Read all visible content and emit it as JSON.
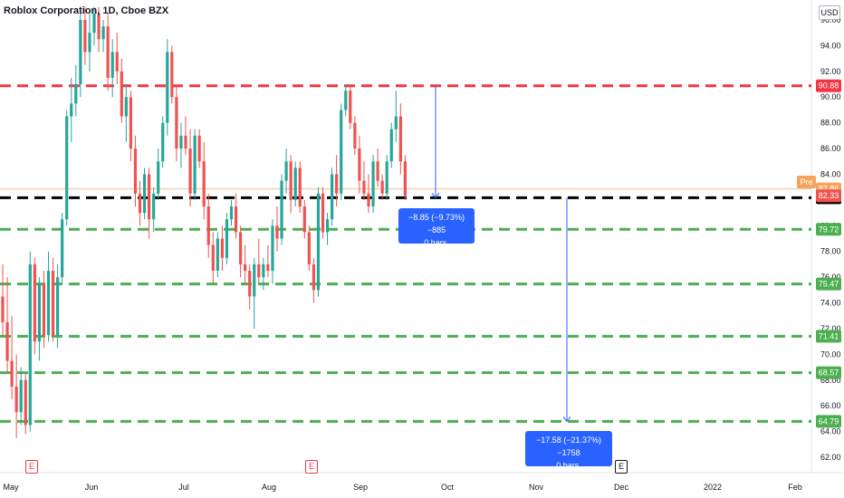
{
  "title": "Roblox Corporation, 1D, Cboe BZX",
  "currency": "USD",
  "pre_label": "Pre",
  "colors": {
    "up": "#26a69a",
    "down": "#ef5350",
    "resistance": "#f23645",
    "support": "#4caf50",
    "current": "#000000",
    "measure": "#2962ff",
    "pre": "#f7a35c"
  },
  "measure_boxes": [
    {
      "line1": "−8.85 (−9.73%) −885",
      "line2": "0 bars,"
    },
    {
      "line1": "−17.58 (−21.37%) −1758",
      "line2": "0 bars,"
    }
  ],
  "markers": [
    "E",
    "E",
    "E"
  ],
  "chart_data": {
    "type": "candlestick",
    "title": "Roblox Corporation, 1D, Cboe BZX",
    "y_range": [
      61,
      97
    ],
    "y_ticks": [
      62,
      64,
      66,
      68,
      70,
      72,
      74,
      76,
      78,
      80,
      82,
      84,
      86,
      88,
      90,
      92,
      94,
      96
    ],
    "x_ticks": [
      "May",
      "Jun",
      "Jul",
      "Aug",
      "Sep",
      "Oct",
      "Nov",
      "Dec",
      "2022",
      "Feb"
    ],
    "price_levels": [
      {
        "value": 90.88,
        "label": "90.88",
        "kind": "resistance"
      },
      {
        "value": 82.18,
        "label": "82.18",
        "kind": "current"
      },
      {
        "value": 79.72,
        "label": "79.72",
        "kind": "support"
      },
      {
        "value": 75.47,
        "label": "75.47",
        "kind": "support"
      },
      {
        "value": 71.41,
        "label": "71.41",
        "kind": "support"
      },
      {
        "value": 68.57,
        "label": "68.57",
        "kind": "support"
      },
      {
        "value": 64.79,
        "label": "64.79",
        "kind": "support"
      }
    ],
    "price_tags": [
      {
        "value": 82.86,
        "label": "82.86",
        "kind": "pre"
      },
      {
        "value": 82.33,
        "label": "82.33",
        "kind": "last"
      }
    ],
    "candles": [
      {
        "o": 74.5,
        "h": 77.0,
        "l": 71.5,
        "c": 72.5
      },
      {
        "o": 72.5,
        "h": 76.0,
        "l": 68.5,
        "c": 69.5
      },
      {
        "o": 69.5,
        "h": 73.0,
        "l": 66.5,
        "c": 67.5
      },
      {
        "o": 67.5,
        "h": 70.0,
        "l": 63.5,
        "c": 65.5
      },
      {
        "o": 65.5,
        "h": 69.0,
        "l": 64.5,
        "c": 68.0
      },
      {
        "o": 68.0,
        "h": 68.5,
        "l": 63.8,
        "c": 64.5
      },
      {
        "o": 64.5,
        "h": 78.0,
        "l": 64.0,
        "c": 77.0
      },
      {
        "o": 77.0,
        "h": 77.5,
        "l": 70.0,
        "c": 71.0
      },
      {
        "o": 71.0,
        "h": 76.0,
        "l": 69.5,
        "c": 75.5
      },
      {
        "o": 75.5,
        "h": 76.5,
        "l": 70.5,
        "c": 71.5
      },
      {
        "o": 71.5,
        "h": 78.0,
        "l": 71.0,
        "c": 76.5
      },
      {
        "o": 76.5,
        "h": 77.5,
        "l": 71.0,
        "c": 71.5
      },
      {
        "o": 71.5,
        "h": 77.0,
        "l": 70.5,
        "c": 76.0
      },
      {
        "o": 76.0,
        "h": 81.0,
        "l": 75.5,
        "c": 80.5
      },
      {
        "o": 80.5,
        "h": 89.0,
        "l": 80.0,
        "c": 88.5
      },
      {
        "o": 88.5,
        "h": 91.5,
        "l": 86.5,
        "c": 89.5
      },
      {
        "o": 89.5,
        "h": 92.5,
        "l": 88.5,
        "c": 91.0
      },
      {
        "o": 91.0,
        "h": 97.0,
        "l": 90.0,
        "c": 96.0
      },
      {
        "o": 96.0,
        "h": 97.0,
        "l": 92.5,
        "c": 93.5
      },
      {
        "o": 93.5,
        "h": 96.5,
        "l": 92.0,
        "c": 95.0
      },
      {
        "o": 95.0,
        "h": 97.0,
        "l": 94.0,
        "c": 96.5
      },
      {
        "o": 96.5,
        "h": 97.0,
        "l": 93.5,
        "c": 94.5
      },
      {
        "o": 94.5,
        "h": 96.0,
        "l": 93.5,
        "c": 95.5
      },
      {
        "o": 95.5,
        "h": 96.5,
        "l": 90.5,
        "c": 91.5
      },
      {
        "o": 91.5,
        "h": 94.5,
        "l": 90.0,
        "c": 93.5
      },
      {
        "o": 93.5,
        "h": 95.0,
        "l": 91.0,
        "c": 92.0
      },
      {
        "o": 92.0,
        "h": 93.0,
        "l": 88.0,
        "c": 88.5
      },
      {
        "o": 88.5,
        "h": 91.0,
        "l": 86.5,
        "c": 90.0
      },
      {
        "o": 90.0,
        "h": 90.5,
        "l": 85.0,
        "c": 86.0
      },
      {
        "o": 86.0,
        "h": 87.0,
        "l": 81.5,
        "c": 82.5
      },
      {
        "o": 82.5,
        "h": 83.5,
        "l": 80.0,
        "c": 81.0
      },
      {
        "o": 81.0,
        "h": 84.5,
        "l": 80.5,
        "c": 84.0
      },
      {
        "o": 84.0,
        "h": 84.5,
        "l": 79.0,
        "c": 80.5
      },
      {
        "o": 80.5,
        "h": 83.0,
        "l": 79.5,
        "c": 82.5
      },
      {
        "o": 82.5,
        "h": 86.0,
        "l": 82.0,
        "c": 85.0
      },
      {
        "o": 85.0,
        "h": 88.5,
        "l": 84.5,
        "c": 88.0
      },
      {
        "o": 88.0,
        "h": 94.5,
        "l": 87.0,
        "c": 93.5
      },
      {
        "o": 93.5,
        "h": 94.0,
        "l": 89.5,
        "c": 90.0
      },
      {
        "o": 90.0,
        "h": 91.0,
        "l": 85.0,
        "c": 86.0
      },
      {
        "o": 86.0,
        "h": 88.0,
        "l": 84.5,
        "c": 87.0
      },
      {
        "o": 87.0,
        "h": 88.5,
        "l": 85.5,
        "c": 86.0
      },
      {
        "o": 86.0,
        "h": 87.5,
        "l": 81.5,
        "c": 82.5
      },
      {
        "o": 82.5,
        "h": 87.5,
        "l": 82.0,
        "c": 87.0
      },
      {
        "o": 87.0,
        "h": 87.5,
        "l": 84.5,
        "c": 85.0
      },
      {
        "o": 85.0,
        "h": 86.5,
        "l": 80.5,
        "c": 81.5
      },
      {
        "o": 81.5,
        "h": 82.5,
        "l": 77.5,
        "c": 78.5
      },
      {
        "o": 78.5,
        "h": 79.5,
        "l": 75.5,
        "c": 76.5
      },
      {
        "o": 76.5,
        "h": 79.5,
        "l": 76.0,
        "c": 79.0
      },
      {
        "o": 79.0,
        "h": 80.0,
        "l": 76.5,
        "c": 77.5
      },
      {
        "o": 77.5,
        "h": 81.0,
        "l": 77.0,
        "c": 80.5
      },
      {
        "o": 80.5,
        "h": 82.0,
        "l": 80.0,
        "c": 81.5
      },
      {
        "o": 81.5,
        "h": 82.5,
        "l": 79.0,
        "c": 79.5
      },
      {
        "o": 79.5,
        "h": 80.0,
        "l": 76.0,
        "c": 77.0
      },
      {
        "o": 77.0,
        "h": 78.5,
        "l": 75.5,
        "c": 76.5
      },
      {
        "o": 76.5,
        "h": 77.0,
        "l": 73.5,
        "c": 74.5
      },
      {
        "o": 74.5,
        "h": 77.5,
        "l": 72.0,
        "c": 77.0
      },
      {
        "o": 77.0,
        "h": 79.0,
        "l": 75.5,
        "c": 76.0
      },
      {
        "o": 76.0,
        "h": 77.5,
        "l": 75.0,
        "c": 77.0
      },
      {
        "o": 77.0,
        "h": 78.5,
        "l": 76.0,
        "c": 76.5
      },
      {
        "o": 76.5,
        "h": 80.5,
        "l": 75.5,
        "c": 80.0
      },
      {
        "o": 80.0,
        "h": 81.5,
        "l": 78.0,
        "c": 79.0
      },
      {
        "o": 79.0,
        "h": 84.0,
        "l": 78.5,
        "c": 83.5
      },
      {
        "o": 83.5,
        "h": 86.0,
        "l": 82.5,
        "c": 85.0
      },
      {
        "o": 85.0,
        "h": 85.5,
        "l": 81.0,
        "c": 82.0
      },
      {
        "o": 82.0,
        "h": 85.0,
        "l": 81.5,
        "c": 84.5
      },
      {
        "o": 84.5,
        "h": 85.0,
        "l": 81.0,
        "c": 81.5
      },
      {
        "o": 81.5,
        "h": 82.0,
        "l": 79.0,
        "c": 79.5
      },
      {
        "o": 79.5,
        "h": 80.0,
        "l": 76.5,
        "c": 77.0
      },
      {
        "o": 77.0,
        "h": 77.5,
        "l": 74.0,
        "c": 75.0
      },
      {
        "o": 75.0,
        "h": 83.0,
        "l": 74.5,
        "c": 82.5
      },
      {
        "o": 82.5,
        "h": 83.0,
        "l": 79.0,
        "c": 79.5
      },
      {
        "o": 79.5,
        "h": 81.0,
        "l": 78.5,
        "c": 80.5
      },
      {
        "o": 80.5,
        "h": 84.5,
        "l": 80.0,
        "c": 84.0
      },
      {
        "o": 84.0,
        "h": 85.5,
        "l": 81.5,
        "c": 82.5
      },
      {
        "o": 82.5,
        "h": 89.5,
        "l": 82.0,
        "c": 89.0
      },
      {
        "o": 89.0,
        "h": 91.0,
        "l": 88.5,
        "c": 90.5
      },
      {
        "o": 90.5,
        "h": 91.0,
        "l": 87.5,
        "c": 88.0
      },
      {
        "o": 88.0,
        "h": 88.5,
        "l": 85.5,
        "c": 86.0
      },
      {
        "o": 86.0,
        "h": 87.0,
        "l": 82.5,
        "c": 83.5
      },
      {
        "o": 83.5,
        "h": 85.0,
        "l": 82.0,
        "c": 82.5
      },
      {
        "o": 82.5,
        "h": 84.0,
        "l": 81.0,
        "c": 81.5
      },
      {
        "o": 81.5,
        "h": 85.5,
        "l": 81.0,
        "c": 85.0
      },
      {
        "o": 85.0,
        "h": 86.0,
        "l": 83.0,
        "c": 83.5
      },
      {
        "o": 83.5,
        "h": 84.0,
        "l": 82.0,
        "c": 82.5
      },
      {
        "o": 82.5,
        "h": 85.5,
        "l": 82.0,
        "c": 85.0
      },
      {
        "o": 85.0,
        "h": 88.0,
        "l": 84.5,
        "c": 87.5
      },
      {
        "o": 87.5,
        "h": 90.5,
        "l": 86.5,
        "c": 88.5
      },
      {
        "o": 88.5,
        "h": 89.5,
        "l": 84.0,
        "c": 85.0
      },
      {
        "o": 85.0,
        "h": 85.5,
        "l": 82.0,
        "c": 82.33
      }
    ]
  }
}
